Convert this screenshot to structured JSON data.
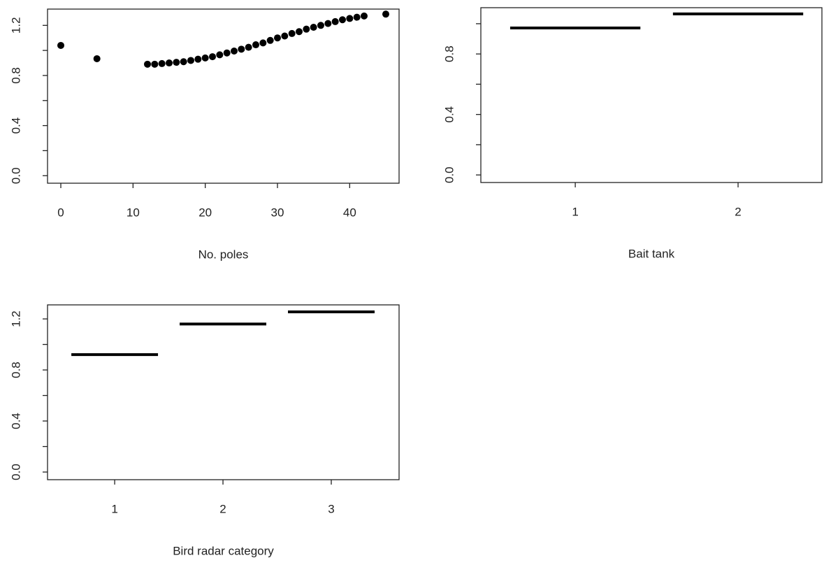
{
  "chart_data": [
    {
      "type": "scatter",
      "xlabel": "No. poles",
      "color": "#000000",
      "x": [
        0,
        5,
        12,
        13,
        14,
        15,
        16,
        17,
        18,
        19,
        20,
        21,
        22,
        23,
        24,
        25,
        26,
        27,
        28,
        29,
        30,
        31,
        32,
        33,
        34,
        35,
        36,
        37,
        38,
        39,
        40,
        41,
        42,
        45
      ],
      "values": [
        1.04,
        0.934,
        0.89,
        0.89,
        0.895,
        0.9,
        0.905,
        0.91,
        0.92,
        0.93,
        0.94,
        0.95,
        0.965,
        0.98,
        0.995,
        1.01,
        1.025,
        1.045,
        1.06,
        1.08,
        1.1,
        1.115,
        1.135,
        1.15,
        1.17,
        1.185,
        1.2,
        1.215,
        1.23,
        1.245,
        1.255,
        1.265,
        1.275,
        1.29
      ],
      "xlim": [
        -1.84,
        46.84
      ],
      "ylim": [
        -0.06,
        1.33
      ],
      "xticks": [
        0,
        10,
        20,
        30,
        40
      ],
      "yticks": [
        {
          "value": 0,
          "label": "0.0"
        },
        {
          "value": 0.4,
          "label": "0.4"
        },
        {
          "value": 0.8,
          "label": "0.8"
        },
        {
          "value": 1.2,
          "label": "1.2"
        }
      ],
      "yminorticks": [
        0.2,
        0.6,
        1.0
      ]
    },
    {
      "type": "segment",
      "xlabel": "Bait tank",
      "color": "#000000",
      "categories": [
        "1",
        "2"
      ],
      "values": [
        0.972,
        1.065
      ],
      "xlim": [
        0.42,
        2.515
      ],
      "ylim": [
        -0.05,
        1.106
      ],
      "yticks": [
        {
          "value": 0,
          "label": "0.0"
        },
        {
          "value": 0.4,
          "label": "0.4"
        },
        {
          "value": 0.8,
          "label": "0.8"
        }
      ],
      "yminorticks": [
        0.2,
        0.6,
        1.0
      ]
    },
    {
      "type": "segment",
      "xlabel": "Bird radar category",
      "color": "#000000",
      "categories": [
        "1",
        "2",
        "3"
      ],
      "values": [
        0.92,
        1.16,
        1.255
      ],
      "xlim": [
        0.38,
        3.626
      ],
      "ylim": [
        -0.06,
        1.31
      ],
      "yticks": [
        {
          "value": 0,
          "label": "0.0"
        },
        {
          "value": 0.4,
          "label": "0.4"
        },
        {
          "value": 0.8,
          "label": "0.8"
        },
        {
          "value": 1.2,
          "label": "1.2"
        }
      ],
      "yminorticks": [
        0.2,
        0.6,
        1.0
      ]
    }
  ]
}
